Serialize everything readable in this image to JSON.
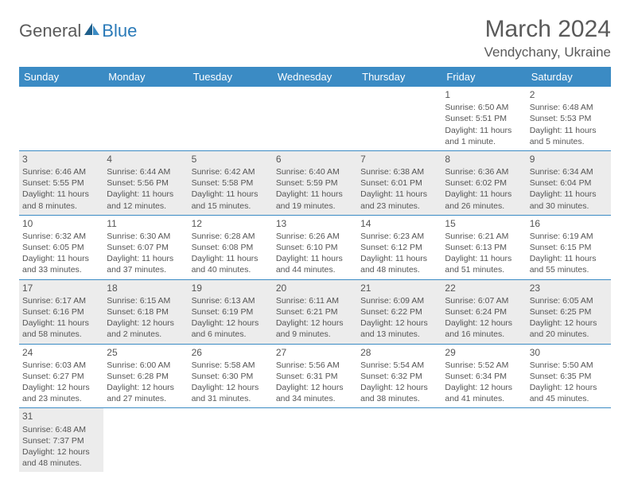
{
  "logo": {
    "general": "General",
    "blue": "Blue"
  },
  "title": "March 2024",
  "location": "Vendychany, Ukraine",
  "day_headers": [
    "Sunday",
    "Monday",
    "Tuesday",
    "Wednesday",
    "Thursday",
    "Friday",
    "Saturday"
  ],
  "colors": {
    "header_bg": "#3b8bc4",
    "header_text": "#ffffff",
    "border": "#3b8bc4",
    "shaded_bg": "#ececec",
    "text": "#555555",
    "logo_blue": "#2a7ab8"
  },
  "weeks": [
    [
      {
        "blank": true
      },
      {
        "blank": true
      },
      {
        "blank": true
      },
      {
        "blank": true
      },
      {
        "blank": true
      },
      {
        "num": "1",
        "sunrise": "Sunrise: 6:50 AM",
        "sunset": "Sunset: 5:51 PM",
        "daylight": "Daylight: 11 hours and 1 minute."
      },
      {
        "num": "2",
        "sunrise": "Sunrise: 6:48 AM",
        "sunset": "Sunset: 5:53 PM",
        "daylight": "Daylight: 11 hours and 5 minutes."
      }
    ],
    [
      {
        "num": "3",
        "shaded": true,
        "sunrise": "Sunrise: 6:46 AM",
        "sunset": "Sunset: 5:55 PM",
        "daylight": "Daylight: 11 hours and 8 minutes."
      },
      {
        "num": "4",
        "shaded": true,
        "sunrise": "Sunrise: 6:44 AM",
        "sunset": "Sunset: 5:56 PM",
        "daylight": "Daylight: 11 hours and 12 minutes."
      },
      {
        "num": "5",
        "shaded": true,
        "sunrise": "Sunrise: 6:42 AM",
        "sunset": "Sunset: 5:58 PM",
        "daylight": "Daylight: 11 hours and 15 minutes."
      },
      {
        "num": "6",
        "shaded": true,
        "sunrise": "Sunrise: 6:40 AM",
        "sunset": "Sunset: 5:59 PM",
        "daylight": "Daylight: 11 hours and 19 minutes."
      },
      {
        "num": "7",
        "shaded": true,
        "sunrise": "Sunrise: 6:38 AM",
        "sunset": "Sunset: 6:01 PM",
        "daylight": "Daylight: 11 hours and 23 minutes."
      },
      {
        "num": "8",
        "shaded": true,
        "sunrise": "Sunrise: 6:36 AM",
        "sunset": "Sunset: 6:02 PM",
        "daylight": "Daylight: 11 hours and 26 minutes."
      },
      {
        "num": "9",
        "shaded": true,
        "sunrise": "Sunrise: 6:34 AM",
        "sunset": "Sunset: 6:04 PM",
        "daylight": "Daylight: 11 hours and 30 minutes."
      }
    ],
    [
      {
        "num": "10",
        "sunrise": "Sunrise: 6:32 AM",
        "sunset": "Sunset: 6:05 PM",
        "daylight": "Daylight: 11 hours and 33 minutes."
      },
      {
        "num": "11",
        "sunrise": "Sunrise: 6:30 AM",
        "sunset": "Sunset: 6:07 PM",
        "daylight": "Daylight: 11 hours and 37 minutes."
      },
      {
        "num": "12",
        "sunrise": "Sunrise: 6:28 AM",
        "sunset": "Sunset: 6:08 PM",
        "daylight": "Daylight: 11 hours and 40 minutes."
      },
      {
        "num": "13",
        "sunrise": "Sunrise: 6:26 AM",
        "sunset": "Sunset: 6:10 PM",
        "daylight": "Daylight: 11 hours and 44 minutes."
      },
      {
        "num": "14",
        "sunrise": "Sunrise: 6:23 AM",
        "sunset": "Sunset: 6:12 PM",
        "daylight": "Daylight: 11 hours and 48 minutes."
      },
      {
        "num": "15",
        "sunrise": "Sunrise: 6:21 AM",
        "sunset": "Sunset: 6:13 PM",
        "daylight": "Daylight: 11 hours and 51 minutes."
      },
      {
        "num": "16",
        "sunrise": "Sunrise: 6:19 AM",
        "sunset": "Sunset: 6:15 PM",
        "daylight": "Daylight: 11 hours and 55 minutes."
      }
    ],
    [
      {
        "num": "17",
        "shaded": true,
        "sunrise": "Sunrise: 6:17 AM",
        "sunset": "Sunset: 6:16 PM",
        "daylight": "Daylight: 11 hours and 58 minutes."
      },
      {
        "num": "18",
        "shaded": true,
        "sunrise": "Sunrise: 6:15 AM",
        "sunset": "Sunset: 6:18 PM",
        "daylight": "Daylight: 12 hours and 2 minutes."
      },
      {
        "num": "19",
        "shaded": true,
        "sunrise": "Sunrise: 6:13 AM",
        "sunset": "Sunset: 6:19 PM",
        "daylight": "Daylight: 12 hours and 6 minutes."
      },
      {
        "num": "20",
        "shaded": true,
        "sunrise": "Sunrise: 6:11 AM",
        "sunset": "Sunset: 6:21 PM",
        "daylight": "Daylight: 12 hours and 9 minutes."
      },
      {
        "num": "21",
        "shaded": true,
        "sunrise": "Sunrise: 6:09 AM",
        "sunset": "Sunset: 6:22 PM",
        "daylight": "Daylight: 12 hours and 13 minutes."
      },
      {
        "num": "22",
        "shaded": true,
        "sunrise": "Sunrise: 6:07 AM",
        "sunset": "Sunset: 6:24 PM",
        "daylight": "Daylight: 12 hours and 16 minutes."
      },
      {
        "num": "23",
        "shaded": true,
        "sunrise": "Sunrise: 6:05 AM",
        "sunset": "Sunset: 6:25 PM",
        "daylight": "Daylight: 12 hours and 20 minutes."
      }
    ],
    [
      {
        "num": "24",
        "sunrise": "Sunrise: 6:03 AM",
        "sunset": "Sunset: 6:27 PM",
        "daylight": "Daylight: 12 hours and 23 minutes."
      },
      {
        "num": "25",
        "sunrise": "Sunrise: 6:00 AM",
        "sunset": "Sunset: 6:28 PM",
        "daylight": "Daylight: 12 hours and 27 minutes."
      },
      {
        "num": "26",
        "sunrise": "Sunrise: 5:58 AM",
        "sunset": "Sunset: 6:30 PM",
        "daylight": "Daylight: 12 hours and 31 minutes."
      },
      {
        "num": "27",
        "sunrise": "Sunrise: 5:56 AM",
        "sunset": "Sunset: 6:31 PM",
        "daylight": "Daylight: 12 hours and 34 minutes."
      },
      {
        "num": "28",
        "sunrise": "Sunrise: 5:54 AM",
        "sunset": "Sunset: 6:32 PM",
        "daylight": "Daylight: 12 hours and 38 minutes."
      },
      {
        "num": "29",
        "sunrise": "Sunrise: 5:52 AM",
        "sunset": "Sunset: 6:34 PM",
        "daylight": "Daylight: 12 hours and 41 minutes."
      },
      {
        "num": "30",
        "sunrise": "Sunrise: 5:50 AM",
        "sunset": "Sunset: 6:35 PM",
        "daylight": "Daylight: 12 hours and 45 minutes."
      }
    ],
    [
      {
        "num": "31",
        "shaded": true,
        "sunrise": "Sunrise: 6:48 AM",
        "sunset": "Sunset: 7:37 PM",
        "daylight": "Daylight: 12 hours and 48 minutes."
      },
      {
        "blank": true
      },
      {
        "blank": true
      },
      {
        "blank": true
      },
      {
        "blank": true
      },
      {
        "blank": true
      },
      {
        "blank": true
      }
    ]
  ]
}
